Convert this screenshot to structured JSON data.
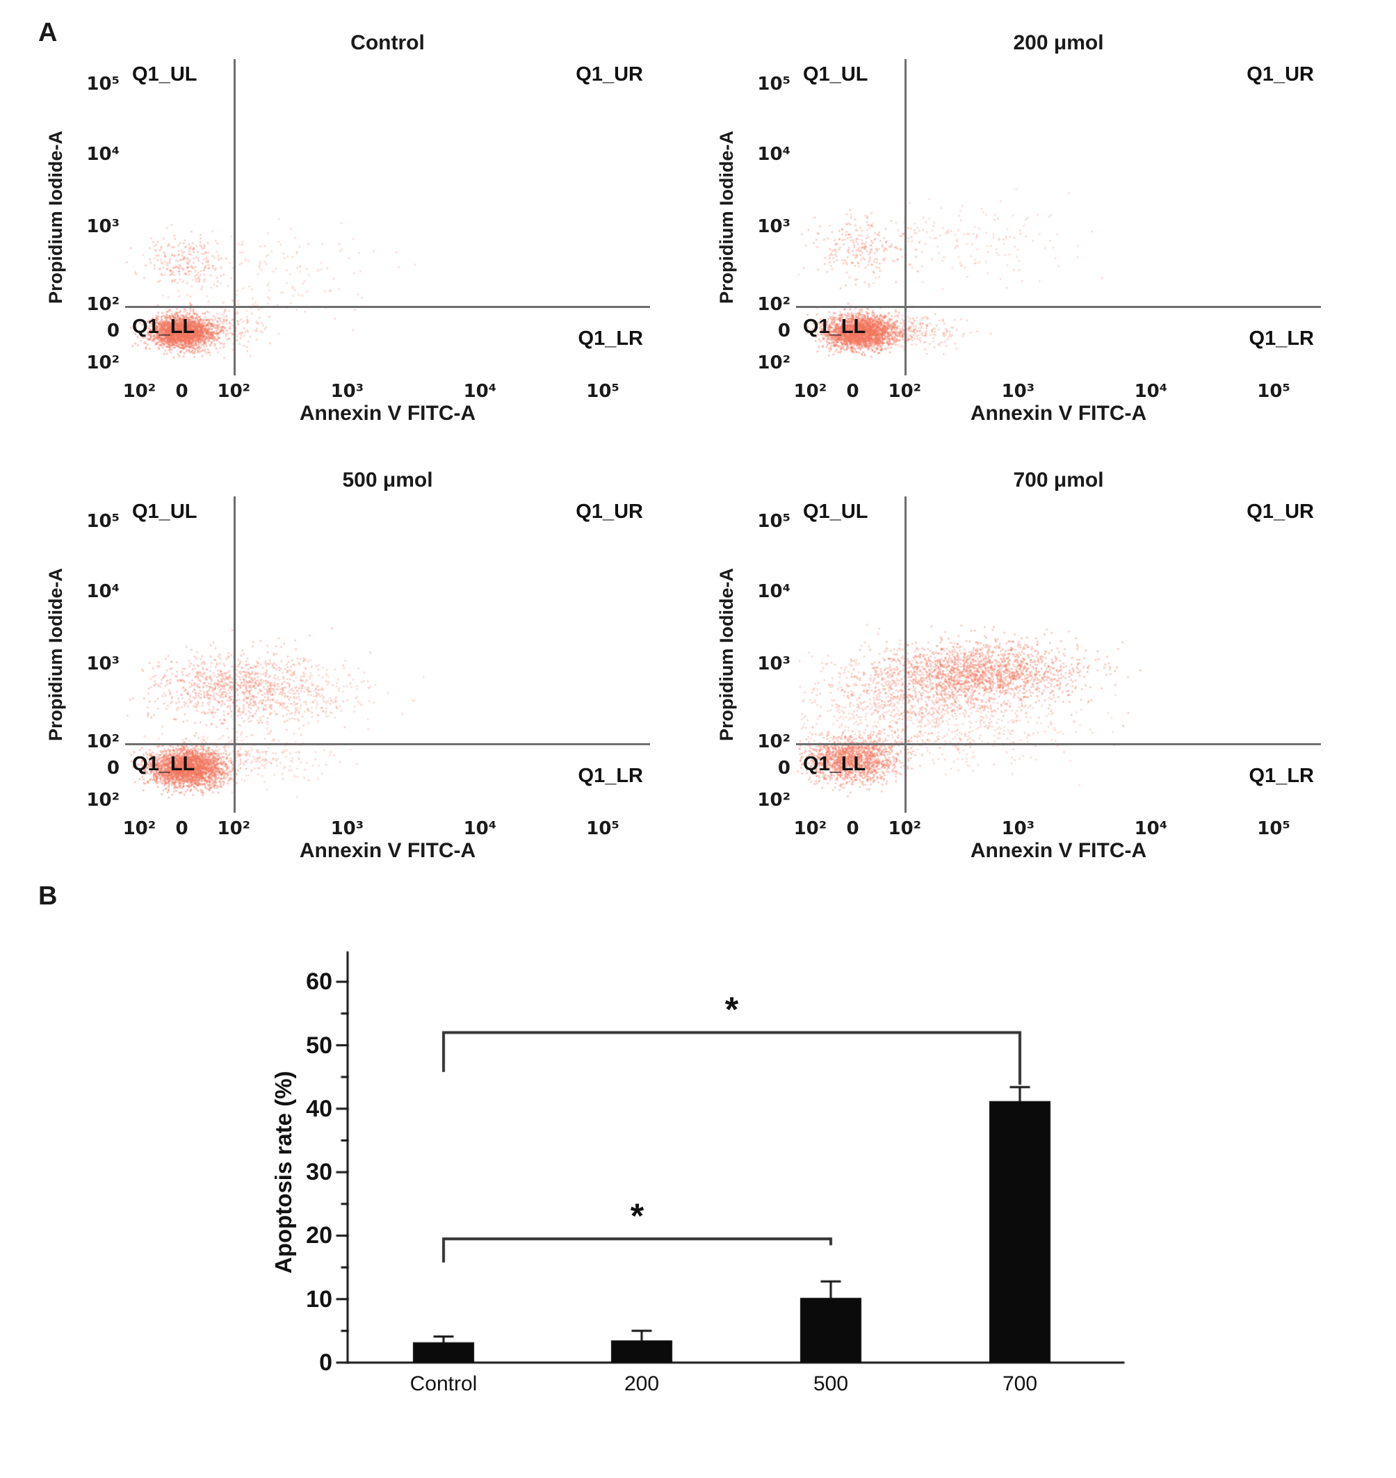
{
  "figure": {
    "panel_a_label": "A",
    "panel_b_label": "B"
  },
  "flow_common": {
    "x_axis_label": "Annexin V FITC-A",
    "y_axis_label": "Propidium Iodide-A",
    "x_tick_labels": [
      "10²",
      "0",
      "10²",
      "10³",
      "10⁴",
      "10⁵"
    ],
    "x_tick_pos": [
      0.027,
      0.108,
      0.207,
      0.423,
      0.676,
      0.91
    ],
    "y_tick_labels": [
      "10⁵",
      "10⁴",
      "10³",
      "10²",
      "0",
      "10²"
    ],
    "y_tick_pos": [
      0.08,
      0.3,
      0.53,
      0.775,
      0.86,
      0.96
    ],
    "gate_x": 0.207,
    "gate_y": 0.78,
    "quadrants": {
      "ul": "Q1_UL",
      "ur": "Q1_UR",
      "ll": "Q1_LL",
      "lr": "Q1_LR"
    },
    "dot_color": "#f4765e",
    "gate_color": "#6e6e6e"
  },
  "chart_data": [
    {
      "type": "scatter",
      "title": "Control",
      "xlabel": "Annexin V FITC-A",
      "ylabel": "Propidium Iodide-A",
      "quadrants": [
        "Q1_UL",
        "Q1_UR",
        "Q1_LL",
        "Q1_LR"
      ],
      "clusters": [
        {
          "cx": 0.105,
          "cy": 0.86,
          "sx": 0.03,
          "sy": 0.026,
          "n": 2200,
          "alpha": 0.5
        },
        {
          "cx": 0.16,
          "cy": 0.85,
          "sx": 0.055,
          "sy": 0.03,
          "n": 300,
          "alpha": 0.35
        },
        {
          "cx": 0.115,
          "cy": 0.635,
          "sx": 0.038,
          "sy": 0.04,
          "n": 220,
          "alpha": 0.4
        },
        {
          "cx": 0.27,
          "cy": 0.67,
          "sx": 0.11,
          "sy": 0.07,
          "n": 150,
          "alpha": 0.3
        }
      ]
    },
    {
      "type": "scatter",
      "title": "200 μmol",
      "xlabel": "Annexin V FITC-A",
      "ylabel": "Propidium Iodide-A",
      "quadrants": [
        "Q1_UL",
        "Q1_UR",
        "Q1_LL",
        "Q1_LR"
      ],
      "clusters": [
        {
          "cx": 0.12,
          "cy": 0.86,
          "sx": 0.032,
          "sy": 0.026,
          "n": 2200,
          "alpha": 0.5
        },
        {
          "cx": 0.2,
          "cy": 0.86,
          "sx": 0.05,
          "sy": 0.025,
          "n": 350,
          "alpha": 0.35
        },
        {
          "cx": 0.12,
          "cy": 0.6,
          "sx": 0.045,
          "sy": 0.05,
          "n": 220,
          "alpha": 0.4
        },
        {
          "cx": 0.3,
          "cy": 0.57,
          "sx": 0.11,
          "sy": 0.06,
          "n": 180,
          "alpha": 0.3
        }
      ]
    },
    {
      "type": "scatter",
      "title": "500 μmol",
      "xlabel": "Annexin V FITC-A",
      "ylabel": "Propidium Iodide-A",
      "quadrants": [
        "Q1_UL",
        "Q1_UR",
        "Q1_LL",
        "Q1_LR"
      ],
      "clusters": [
        {
          "cx": 0.115,
          "cy": 0.855,
          "sx": 0.036,
          "sy": 0.03,
          "n": 2400,
          "alpha": 0.5
        },
        {
          "cx": 0.21,
          "cy": 0.6,
          "sx": 0.085,
          "sy": 0.055,
          "n": 900,
          "alpha": 0.4
        },
        {
          "cx": 0.33,
          "cy": 0.62,
          "sx": 0.08,
          "sy": 0.06,
          "n": 250,
          "alpha": 0.3
        },
        {
          "cx": 0.22,
          "cy": 0.82,
          "sx": 0.09,
          "sy": 0.04,
          "n": 300,
          "alpha": 0.3
        }
      ]
    },
    {
      "type": "scatter",
      "title": "700 μmol",
      "xlabel": "Annexin V FITC-A",
      "ylabel": "Propidium Iodide-A",
      "quadrants": [
        "Q1_UL",
        "Q1_UR",
        "Q1_LL",
        "Q1_LR"
      ],
      "clusters": [
        {
          "cx": 0.105,
          "cy": 0.83,
          "sx": 0.045,
          "sy": 0.035,
          "n": 1500,
          "alpha": 0.45
        },
        {
          "cx": 0.36,
          "cy": 0.555,
          "sx": 0.09,
          "sy": 0.05,
          "n": 1600,
          "alpha": 0.45
        },
        {
          "cx": 0.22,
          "cy": 0.6,
          "sx": 0.09,
          "sy": 0.06,
          "n": 700,
          "alpha": 0.35
        },
        {
          "cx": 0.25,
          "cy": 0.72,
          "sx": 0.13,
          "sy": 0.06,
          "n": 700,
          "alpha": 0.3
        }
      ]
    },
    {
      "type": "bar",
      "categories": [
        "Control",
        "200",
        "500",
        "700"
      ],
      "values": [
        3.2,
        3.5,
        10.2,
        41.2
      ],
      "errors": [
        0.9,
        1.5,
        2.6,
        2.2
      ],
      "ylabel": "Apoptosis rate (%)",
      "ylim": [
        0,
        65
      ],
      "yticks": [
        0,
        10,
        20,
        30,
        40,
        50,
        60
      ],
      "bar_color": "#0b0b0b",
      "significance": [
        {
          "from": 0,
          "to": 2,
          "level": 19.5,
          "left_drop": 3.5,
          "right_drop": 0.8,
          "label": "*"
        },
        {
          "from": 0,
          "to": 3,
          "level": 52,
          "left_drop": 6,
          "right_drop": 8,
          "label": "*"
        }
      ]
    }
  ]
}
